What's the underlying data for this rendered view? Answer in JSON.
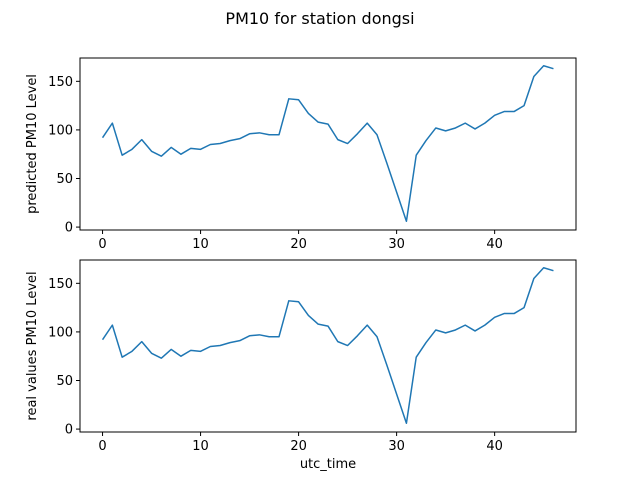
{
  "figure": {
    "title": "PM10 for station dongsi"
  },
  "chart_data": [
    {
      "type": "line",
      "ylabel": "predicted PM10 Level",
      "xlabel": "",
      "xlim": [
        -2.3,
        48.3
      ],
      "ylim": [
        -3,
        174
      ],
      "xticks": [
        0,
        10,
        20,
        30,
        40
      ],
      "yticks": [
        0,
        50,
        100,
        150
      ],
      "grid": false,
      "line_color": "#1f77b4",
      "series": [
        {
          "x": [
            0,
            1,
            2,
            3,
            4,
            5,
            6,
            7,
            8,
            9,
            10,
            11,
            12,
            13,
            14,
            15,
            16,
            17,
            18,
            19,
            20,
            21,
            22,
            23,
            24,
            25,
            26,
            27,
            28,
            29,
            30,
            31,
            32,
            33,
            34,
            35,
            36,
            37,
            38,
            39,
            40,
            41,
            42,
            43,
            44,
            45,
            46
          ],
          "values": [
            92,
            107,
            74,
            80,
            90,
            78,
            73,
            82,
            75,
            81,
            80,
            85,
            86,
            89,
            91,
            96,
            97,
            95,
            95,
            132,
            131,
            117,
            108,
            106,
            90,
            86,
            96,
            107,
            95,
            66,
            36,
            6,
            74,
            89,
            102,
            99,
            102,
            107,
            101,
            107,
            115,
            119,
            119,
            125,
            155,
            166,
            163
          ]
        }
      ]
    },
    {
      "type": "line",
      "ylabel": "real values PM10 Level",
      "xlabel": "utc_time",
      "xlim": [
        -2.3,
        48.3
      ],
      "ylim": [
        -3,
        174
      ],
      "xticks": [
        0,
        10,
        20,
        30,
        40
      ],
      "yticks": [
        0,
        50,
        100,
        150
      ],
      "grid": false,
      "line_color": "#1f77b4",
      "series": [
        {
          "x": [
            0,
            1,
            2,
            3,
            4,
            5,
            6,
            7,
            8,
            9,
            10,
            11,
            12,
            13,
            14,
            15,
            16,
            17,
            18,
            19,
            20,
            21,
            22,
            23,
            24,
            25,
            26,
            27,
            28,
            29,
            30,
            31,
            32,
            33,
            34,
            35,
            36,
            37,
            38,
            39,
            40,
            41,
            42,
            43,
            44,
            45,
            46
          ],
          "values": [
            92,
            107,
            74,
            80,
            90,
            78,
            73,
            82,
            75,
            81,
            80,
            85,
            86,
            89,
            91,
            96,
            97,
            95,
            95,
            132,
            131,
            117,
            108,
            106,
            90,
            86,
            96,
            107,
            95,
            66,
            36,
            6,
            74,
            89,
            102,
            99,
            102,
            107,
            101,
            107,
            115,
            119,
            119,
            125,
            155,
            166,
            163
          ]
        }
      ]
    }
  ]
}
